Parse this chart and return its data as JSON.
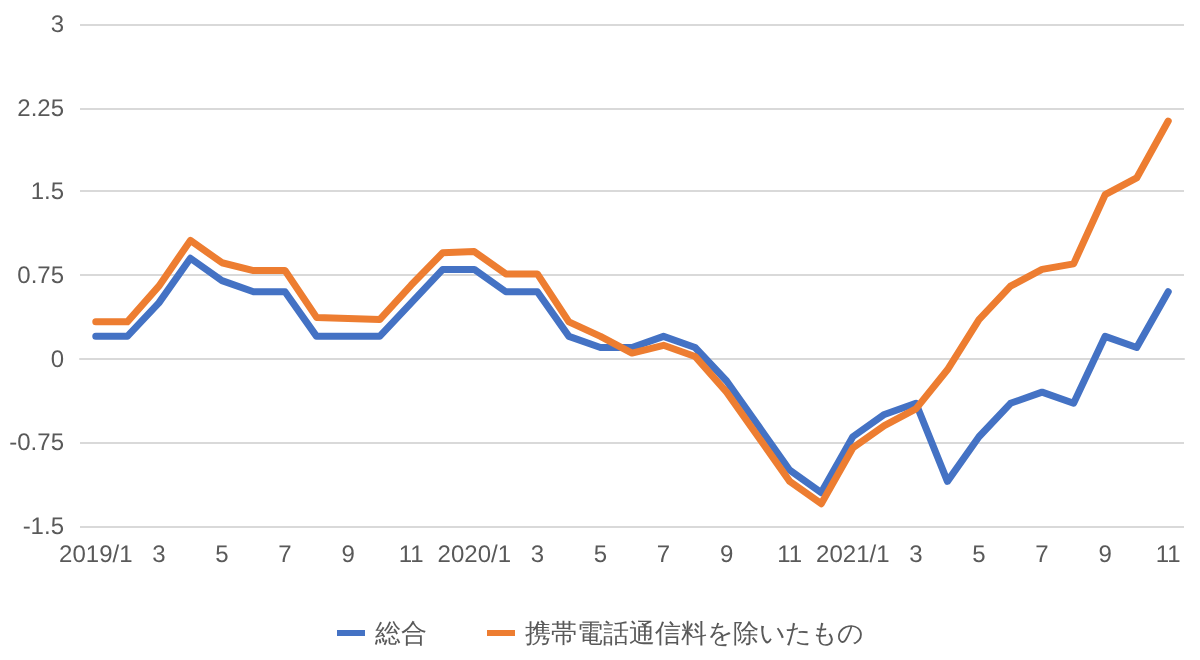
{
  "chart_data": {
    "type": "line",
    "categories": [
      "2019/1",
      null,
      "3",
      null,
      "5",
      null,
      "7",
      null,
      "9",
      null,
      "11",
      null,
      "2020/1",
      null,
      "3",
      null,
      "5",
      null,
      "7",
      null,
      "9",
      null,
      "11",
      null,
      "2021/1",
      null,
      "3",
      null,
      "5",
      null,
      "7",
      null,
      "9",
      null,
      "11"
    ],
    "series": [
      {
        "name": "総合",
        "color": "#4472c4",
        "values": [
          0.2,
          0.2,
          0.5,
          0.9,
          0.7,
          0.6,
          0.6,
          0.2,
          0.2,
          0.2,
          0.5,
          0.8,
          0.8,
          0.6,
          0.6,
          0.2,
          0.1,
          0.1,
          0.2,
          0.1,
          -0.2,
          -0.6,
          -1.0,
          -1.2,
          -0.7,
          -0.5,
          -0.4,
          -1.1,
          -0.7,
          -0.4,
          -0.3,
          -0.4,
          0.2,
          0.1,
          0.6
        ]
      },
      {
        "name": "携帯電話通信料を除いたもの",
        "color": "#ed7d31",
        "values": [
          0.33,
          0.33,
          0.65,
          1.06,
          0.86,
          0.79,
          0.79,
          0.37,
          0.36,
          0.35,
          0.66,
          0.95,
          0.96,
          0.76,
          0.76,
          0.33,
          0.2,
          0.05,
          0.12,
          0.02,
          -0.3,
          -0.7,
          -1.1,
          -1.3,
          -0.8,
          -0.6,
          -0.45,
          -0.1,
          0.35,
          0.65,
          0.8,
          0.85,
          1.47,
          1.62,
          2.13
        ]
      }
    ],
    "ylim": [
      -1.5,
      3
    ],
    "yticks": [
      -1.5,
      -0.75,
      0,
      0.75,
      1.5,
      2.25,
      3
    ],
    "grid": "y",
    "legend": "bottom",
    "marker": "none",
    "line_style": "solid"
  }
}
